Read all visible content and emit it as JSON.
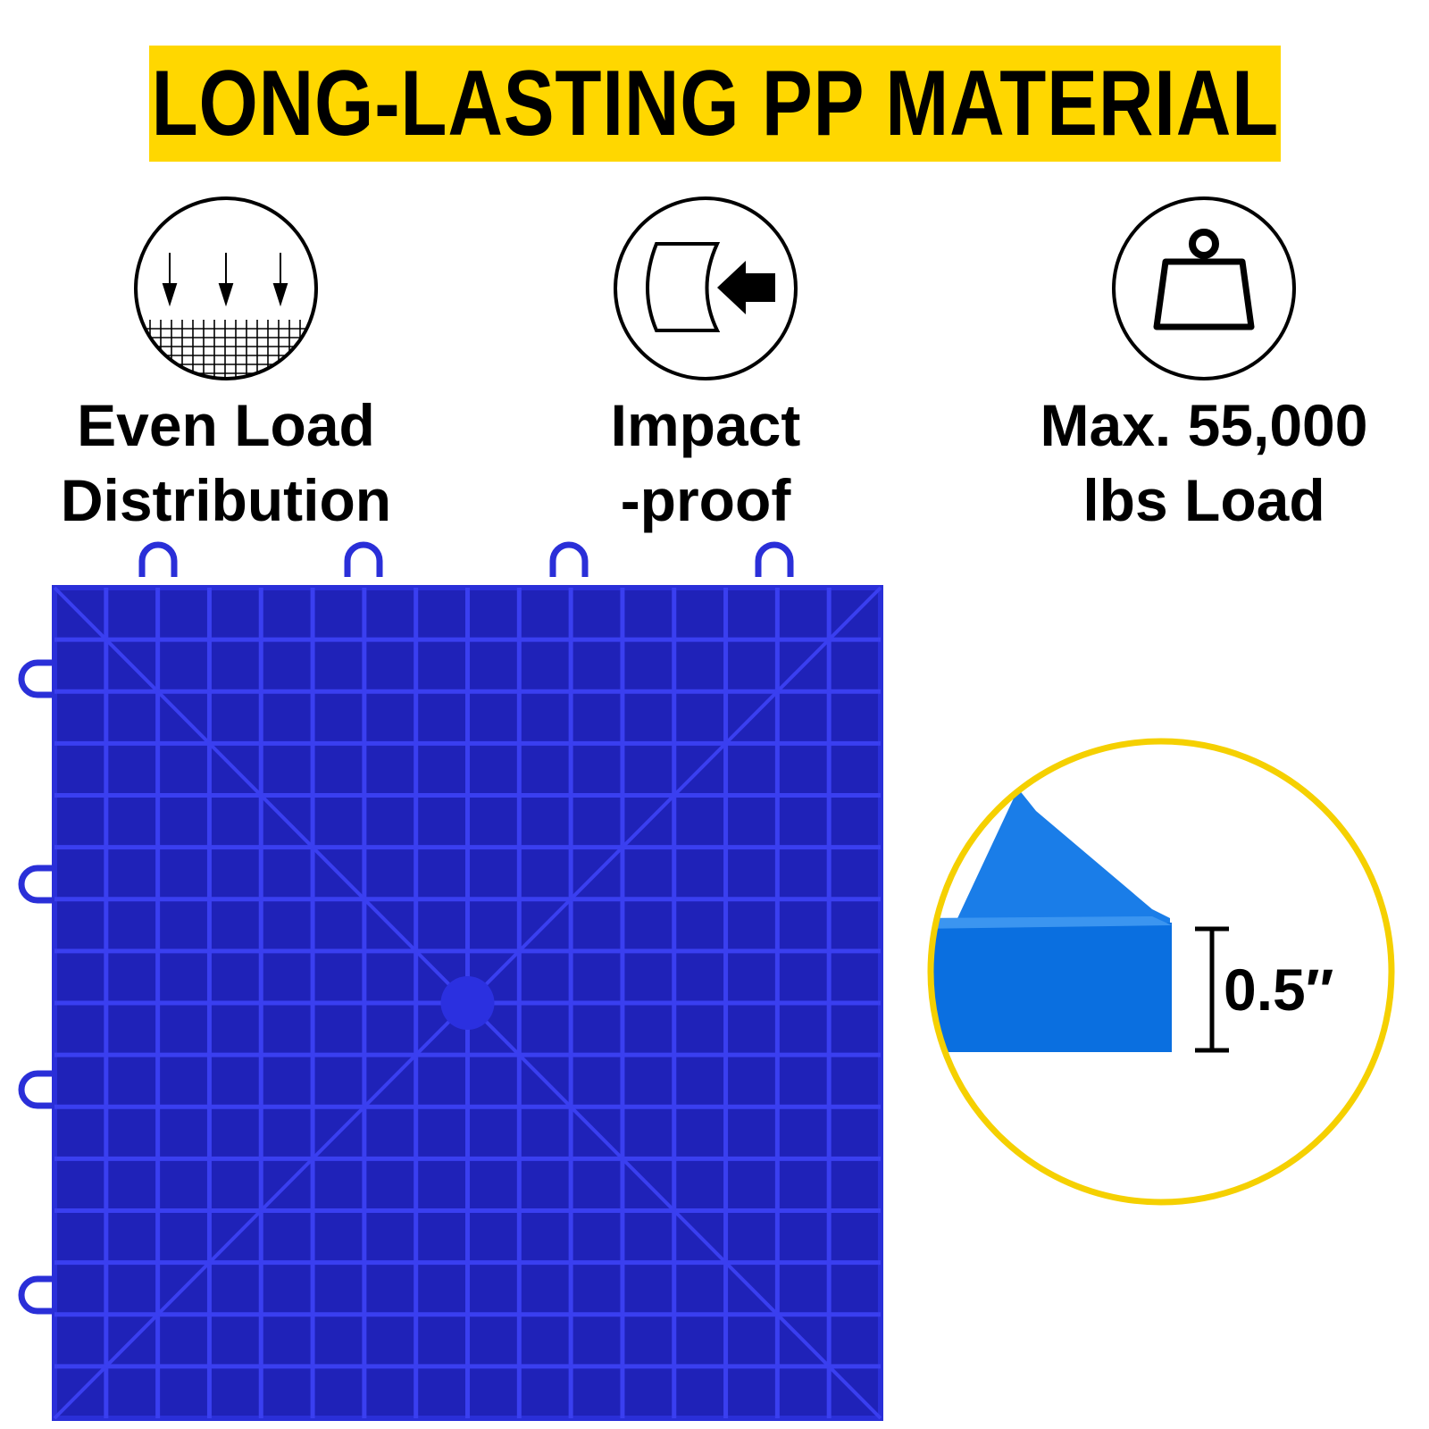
{
  "banner": {
    "title": "LONG-LASTING PP MATERIAL",
    "background": "#ffd700"
  },
  "features": [
    {
      "icon": "even-load-icon",
      "line1": "Even Load",
      "line2": "Distribution"
    },
    {
      "icon": "impact-icon",
      "line1": "Impact",
      "line2": "-proof"
    },
    {
      "icon": "weight-icon",
      "line1": "Max. 55,000",
      "line2": "lbs Load"
    }
  ],
  "product": {
    "tile_color": "#2a2fd8",
    "edge_color": "#0a6fe0"
  },
  "thickness": {
    "label": "0.5″",
    "ring_color": "#f5d000"
  }
}
